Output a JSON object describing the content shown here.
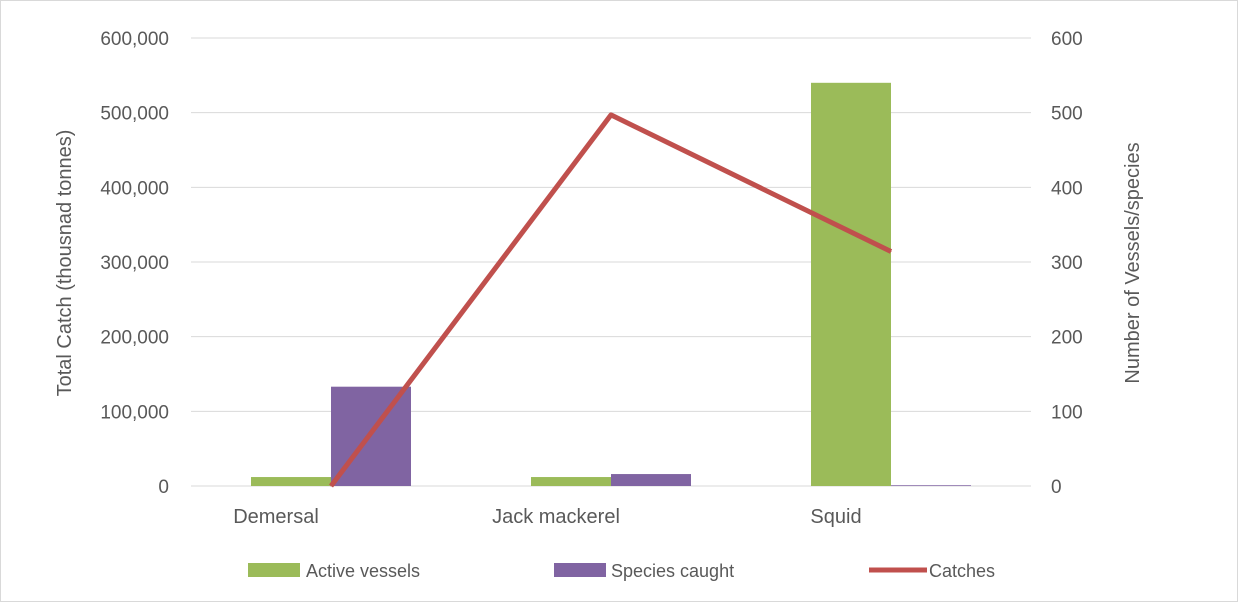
{
  "chart_data": {
    "type": "bar",
    "categories": [
      "Demersal",
      "Jack mackerel",
      "Squid"
    ],
    "series": [
      {
        "name": "Active vessels",
        "type": "bar",
        "axis": "right",
        "color": "#9bbb59",
        "values": [
          12,
          12,
          540
        ]
      },
      {
        "name": "Species caught",
        "type": "bar",
        "axis": "right",
        "color": "#8064a2",
        "values": [
          133,
          16,
          1
        ]
      },
      {
        "name": "Catches",
        "type": "line",
        "axis": "left",
        "color": "#c0504d",
        "values": [
          0,
          497000,
          314000
        ]
      }
    ],
    "ylabel": "Total Catch (thousnad tonnes)",
    "y2label": "Number of Vessels/species",
    "ylim": [
      0,
      600000
    ],
    "y2lim": [
      0,
      600
    ],
    "yticks": [
      "0",
      "100,000",
      "200,000",
      "300,000",
      "400,000",
      "500,000",
      "600,000"
    ],
    "y2ticks": [
      "0",
      "100",
      "200",
      "300",
      "400",
      "500",
      "600"
    ],
    "grid": true,
    "legend": "bottom"
  }
}
